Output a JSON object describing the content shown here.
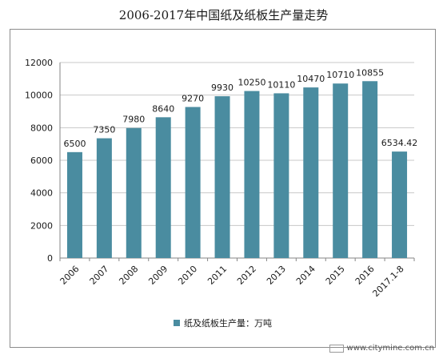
{
  "chart_data": {
    "type": "bar",
    "title": "2006-2017年中国纸及纸板生产量走势",
    "categories": [
      "2006",
      "2007",
      "2008",
      "2009",
      "2010",
      "2011",
      "2012",
      "2013",
      "2014",
      "2015",
      "2016",
      "2017.1-8"
    ],
    "series": [
      {
        "name": "纸及纸板生产量：万吨",
        "values": [
          6500,
          7350,
          7980,
          8640,
          9270,
          9930,
          10250,
          10110,
          10470,
          10710,
          10855,
          6534.42
        ],
        "labels": [
          "6500",
          "7350",
          "7980",
          "8640",
          "9270",
          "9930",
          "10250",
          "10110",
          "10470",
          "10710",
          "10855",
          "6534.42"
        ]
      }
    ],
    "ylim": [
      0,
      12000
    ],
    "yticks": [
      "0",
      "2000",
      "4000",
      "6000",
      "8000",
      "10000",
      "12000"
    ],
    "grid": true,
    "legend": "bottom-center",
    "colors": {
      "bar": "#4a8ca0",
      "grid": "#c8c8c8",
      "axis": "#868686",
      "text": "#1a1a1a"
    }
  },
  "watermark": {
    "text": "www.citymine.com.cn"
  }
}
